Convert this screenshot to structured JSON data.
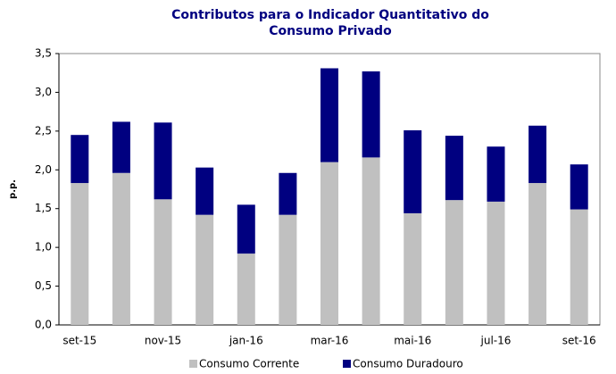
{
  "chart_data": {
    "type": "stacked_bar",
    "title": "Contributos para o Indicador Quantitativo do Consumo Privado",
    "y_label": "p.p.",
    "categories": [
      "set-15",
      null,
      "nov-15",
      null,
      "jan-16",
      null,
      "mar-16",
      null,
      "mai-16",
      null,
      "jul-16",
      null,
      "set-16"
    ],
    "series": [
      {
        "name": "Consumo Corrente",
        "color": "#c0c0c0",
        "values": [
          1.83,
          1.96,
          1.62,
          1.42,
          0.92,
          1.42,
          2.1,
          2.16,
          1.44,
          1.61,
          1.59,
          1.83,
          1.49
        ]
      },
      {
        "name": "Consumo Duradouro",
        "color": "#000080",
        "values": [
          0.62,
          0.66,
          0.99,
          0.61,
          0.63,
          0.54,
          1.21,
          1.11,
          1.07,
          0.83,
          0.71,
          0.74,
          0.58
        ]
      }
    ],
    "ylim": [
      0,
      3.5
    ],
    "yticks": [
      {
        "value": 0,
        "label": "0,0"
      },
      {
        "value": 0.5,
        "label": "0,5"
      },
      {
        "value": 1,
        "label": "1,0"
      },
      {
        "value": 1.5,
        "label": "1,5"
      },
      {
        "value": 2,
        "label": "2,0"
      },
      {
        "value": 2.5,
        "label": "2,5"
      },
      {
        "value": 3,
        "label": "3,0"
      },
      {
        "value": 3.5,
        "label": "3,5"
      }
    ],
    "grid": false,
    "legend": "bottom"
  }
}
